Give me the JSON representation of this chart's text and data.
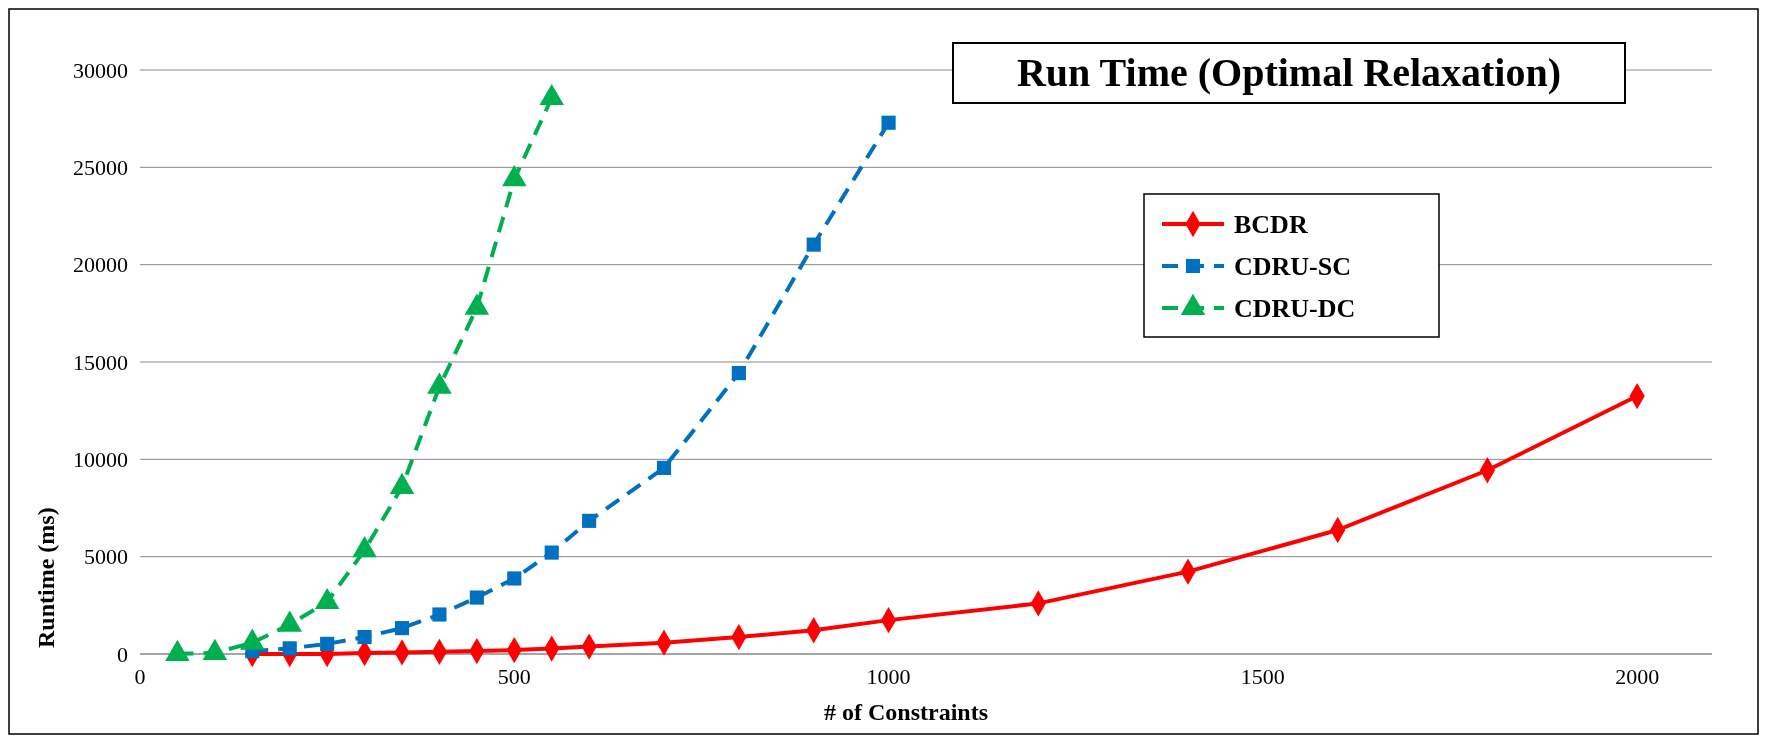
{
  "chart_data": {
    "type": "line",
    "title": "Run Time (Optimal Relaxation)",
    "xlabel": "# of Constraints",
    "ylabel": "Runtime (ms)",
    "xlim": [
      0,
      2100
    ],
    "xticks": [
      0,
      500,
      1000,
      1500,
      2000
    ],
    "ylim": [
      0,
      30000
    ],
    "yticks": [
      0,
      5000,
      10000,
      15000,
      20000,
      25000,
      30000
    ],
    "grid": "y",
    "legend": "right",
    "series": [
      {
        "name": "BCDR",
        "color": "#ff0000",
        "marker": "diamond",
        "line_style": "solid",
        "x": [
          150,
          200,
          250,
          300,
          350,
          400,
          450,
          500,
          550,
          600,
          700,
          800,
          900,
          1000,
          1200,
          1400,
          1600,
          1800,
          2000
        ],
        "values": [
          0,
          0,
          0,
          50,
          80,
          110,
          150,
          200,
          280,
          380,
          580,
          870,
          1220,
          1740,
          2600,
          4230,
          6370,
          9440,
          13250
        ]
      },
      {
        "name": "CDRU-SC",
        "color": "#0070c0",
        "marker": "square",
        "line_style": "dashed",
        "x": [
          150,
          200,
          250,
          300,
          350,
          400,
          450,
          500,
          550,
          600,
          700,
          800,
          900,
          1000
        ],
        "values": [
          150,
          290,
          520,
          870,
          1330,
          2030,
          2900,
          3880,
          5210,
          6840,
          9560,
          14430,
          21030,
          27290
        ]
      },
      {
        "name": "CDRU-DC",
        "color": "#00b050",
        "marker": "triangle",
        "line_style": "dashed",
        "x": [
          50,
          100,
          150,
          200,
          250,
          300,
          350,
          400,
          450,
          500,
          550
        ],
        "values": [
          10,
          60,
          580,
          1510,
          2670,
          5330,
          8580,
          13730,
          17790,
          24390,
          28560
        ]
      }
    ]
  }
}
